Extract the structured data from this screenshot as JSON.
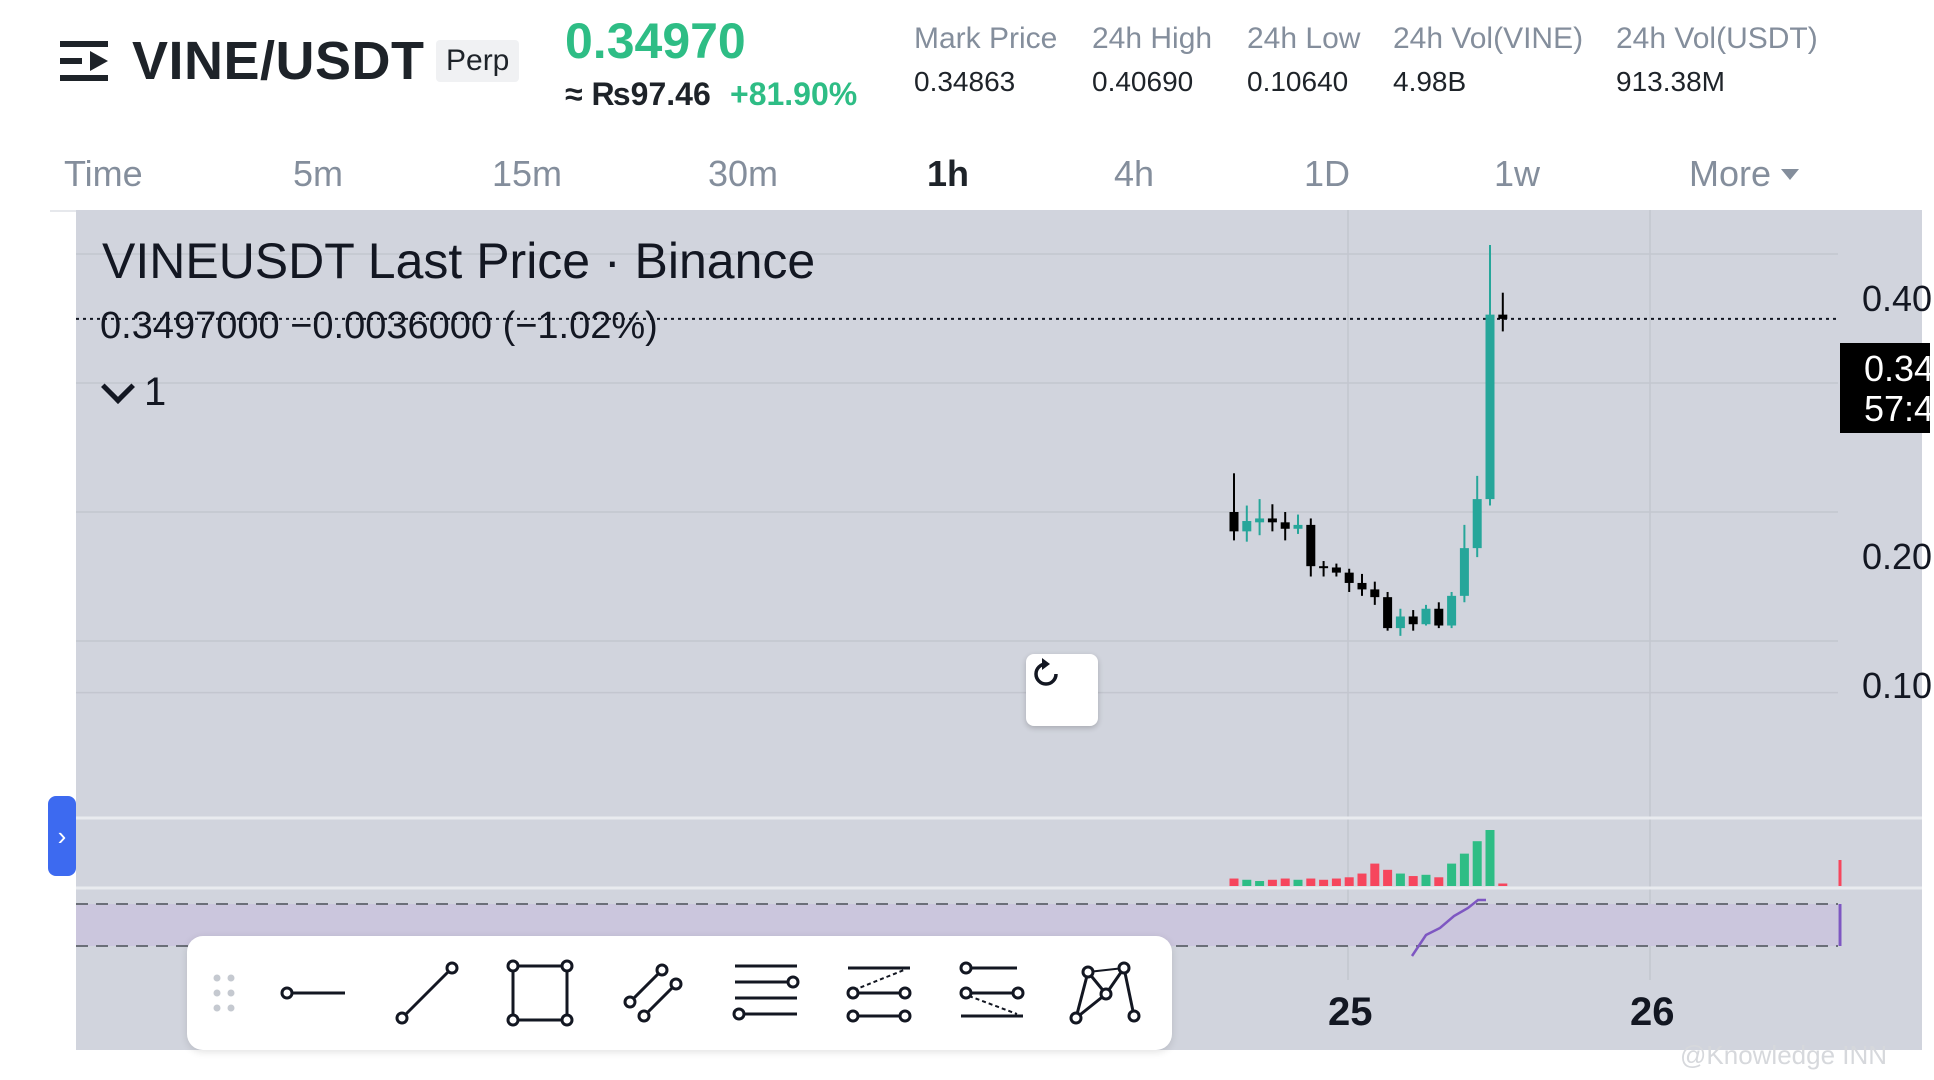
{
  "header": {
    "pair": "VINE/USDT",
    "contract_type": "Perp",
    "last_price": "0.34970",
    "fiat_price": "≈ ₨97.46",
    "change_pct": "+81.90%",
    "stats": [
      {
        "label": "Mark Price",
        "value": "0.34863"
      },
      {
        "label": "24h High",
        "value": "0.40690"
      },
      {
        "label": "24h Low",
        "value": "0.10640"
      },
      {
        "label": "24h Vol(VINE)",
        "value": "4.98B"
      },
      {
        "label": "24h Vol(USDT)",
        "value": "913.38M"
      }
    ]
  },
  "intervals": {
    "items": [
      "Time",
      "5m",
      "15m",
      "30m",
      "1h",
      "4h",
      "1D",
      "1w"
    ],
    "active": "1h",
    "more_label": "More"
  },
  "chart": {
    "legend_title": "VINEUSDT Last Price · Binance",
    "legend_values": "0.3497000  −0.0036000 (−1.02%)",
    "collapse_count": "1",
    "price_label_line1": "0.34",
    "price_label_line2": "57:4",
    "y_axis_labels": [
      "0.40",
      "0.20",
      "0.10"
    ],
    "x_axis_labels": [
      "25",
      "26"
    ],
    "watermark": "@Knowledge INN",
    "colors": {
      "up": "#26a69a",
      "down": "#000000",
      "volume_up": "#2ebd85",
      "volume_down": "#f6465d",
      "background": "#d1d4dd",
      "rsi": "#7e57c2"
    }
  },
  "chart_data": {
    "type": "candlestick",
    "title": "VINEUSDT Last Price · Binance",
    "interval": "1h",
    "y_ticks": [
      0.1,
      0.2,
      0.4
    ],
    "x_ticks": [
      "25",
      "26"
    ],
    "last_price": 0.3497,
    "candles": [
      {
        "o": 0.2,
        "h": 0.23,
        "l": 0.178,
        "c": 0.185
      },
      {
        "o": 0.185,
        "h": 0.205,
        "l": 0.177,
        "c": 0.193
      },
      {
        "o": 0.192,
        "h": 0.21,
        "l": 0.182,
        "c": 0.195
      },
      {
        "o": 0.195,
        "h": 0.206,
        "l": 0.185,
        "c": 0.192
      },
      {
        "o": 0.192,
        "h": 0.2,
        "l": 0.178,
        "c": 0.187
      },
      {
        "o": 0.187,
        "h": 0.198,
        "l": 0.183,
        "c": 0.19
      },
      {
        "o": 0.19,
        "h": 0.195,
        "l": 0.15,
        "c": 0.158
      },
      {
        "o": 0.158,
        "h": 0.162,
        "l": 0.15,
        "c": 0.157
      },
      {
        "o": 0.157,
        "h": 0.16,
        "l": 0.15,
        "c": 0.153
      },
      {
        "o": 0.153,
        "h": 0.156,
        "l": 0.138,
        "c": 0.145
      },
      {
        "o": 0.145,
        "h": 0.152,
        "l": 0.135,
        "c": 0.14
      },
      {
        "o": 0.14,
        "h": 0.146,
        "l": 0.128,
        "c": 0.134
      },
      {
        "o": 0.134,
        "h": 0.138,
        "l": 0.108,
        "c": 0.11
      },
      {
        "o": 0.11,
        "h": 0.125,
        "l": 0.104,
        "c": 0.119
      },
      {
        "o": 0.119,
        "h": 0.124,
        "l": 0.108,
        "c": 0.113
      },
      {
        "o": 0.113,
        "h": 0.128,
        "l": 0.112,
        "c": 0.125
      },
      {
        "o": 0.125,
        "h": 0.13,
        "l": 0.11,
        "c": 0.112
      },
      {
        "o": 0.112,
        "h": 0.138,
        "l": 0.11,
        "c": 0.135
      },
      {
        "o": 0.135,
        "h": 0.19,
        "l": 0.13,
        "c": 0.172
      },
      {
        "o": 0.172,
        "h": 0.228,
        "l": 0.165,
        "c": 0.21
      },
      {
        "o": 0.21,
        "h": 0.407,
        "l": 0.205,
        "c": 0.353
      },
      {
        "o": 0.353,
        "h": 0.37,
        "l": 0.34,
        "c": 0.3497
      }
    ],
    "volume": [
      6,
      5,
      4,
      5,
      6,
      5,
      6,
      5,
      6,
      7,
      10,
      18,
      13,
      10,
      8,
      9,
      7,
      18,
      26,
      36,
      45,
      2
    ],
    "rsi_range": [
      30,
      70
    ]
  }
}
